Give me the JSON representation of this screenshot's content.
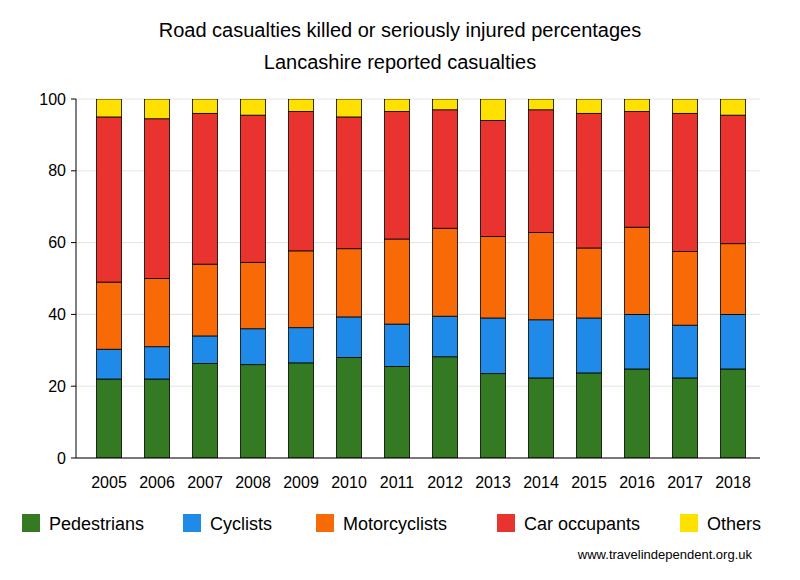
{
  "chart_data": {
    "type": "bar",
    "stacked": true,
    "title": "Road casualties killed or seriously injured percentages",
    "subtitle": "Lancashire reported casualties",
    "annotations": [
      "www.travelindependent.org.uk"
    ],
    "categories": [
      "2005",
      "2006",
      "2007",
      "2008",
      "2009",
      "2010",
      "2011",
      "2012",
      "2013",
      "2014",
      "2015",
      "2016",
      "2017",
      "2018"
    ],
    "series": [
      {
        "name": "Pedestrians",
        "color": "#347a23",
        "values": [
          22,
          22,
          26.3,
          26,
          26.5,
          28,
          25.5,
          28.2,
          23.5,
          22.3,
          23.7,
          24.8,
          22.3,
          24.8
        ]
      },
      {
        "name": "Cyclists",
        "color": "#1f8ae8",
        "values": [
          8.3,
          9,
          7.7,
          10,
          9.8,
          11.3,
          11.8,
          11.3,
          15.5,
          16.2,
          15.3,
          15.2,
          14.7,
          15.2
        ]
      },
      {
        "name": "Motorcyclists",
        "color": "#f76a06",
        "values": [
          18.7,
          19,
          20,
          18.5,
          21.4,
          19,
          23.7,
          24.5,
          22.7,
          24.3,
          19.5,
          24.3,
          20.5,
          19.7
        ]
      },
      {
        "name": "Car occupants",
        "color": "#e8332f",
        "values": [
          46,
          44.5,
          42,
          41,
          38.8,
          36.7,
          35.5,
          33,
          32.3,
          34.2,
          37.5,
          32.2,
          38.5,
          35.8
        ]
      },
      {
        "name": "Others",
        "color": "#ffe100",
        "values": [
          5,
          5.5,
          4,
          4.5,
          3.5,
          5,
          3.5,
          3,
          6,
          3,
          4,
          3.5,
          4,
          4.5
        ]
      }
    ],
    "ylim": [
      0,
      100
    ],
    "yticks": [
      0,
      20,
      40,
      60,
      80,
      100
    ],
    "grid": true,
    "legend": "bottom"
  }
}
